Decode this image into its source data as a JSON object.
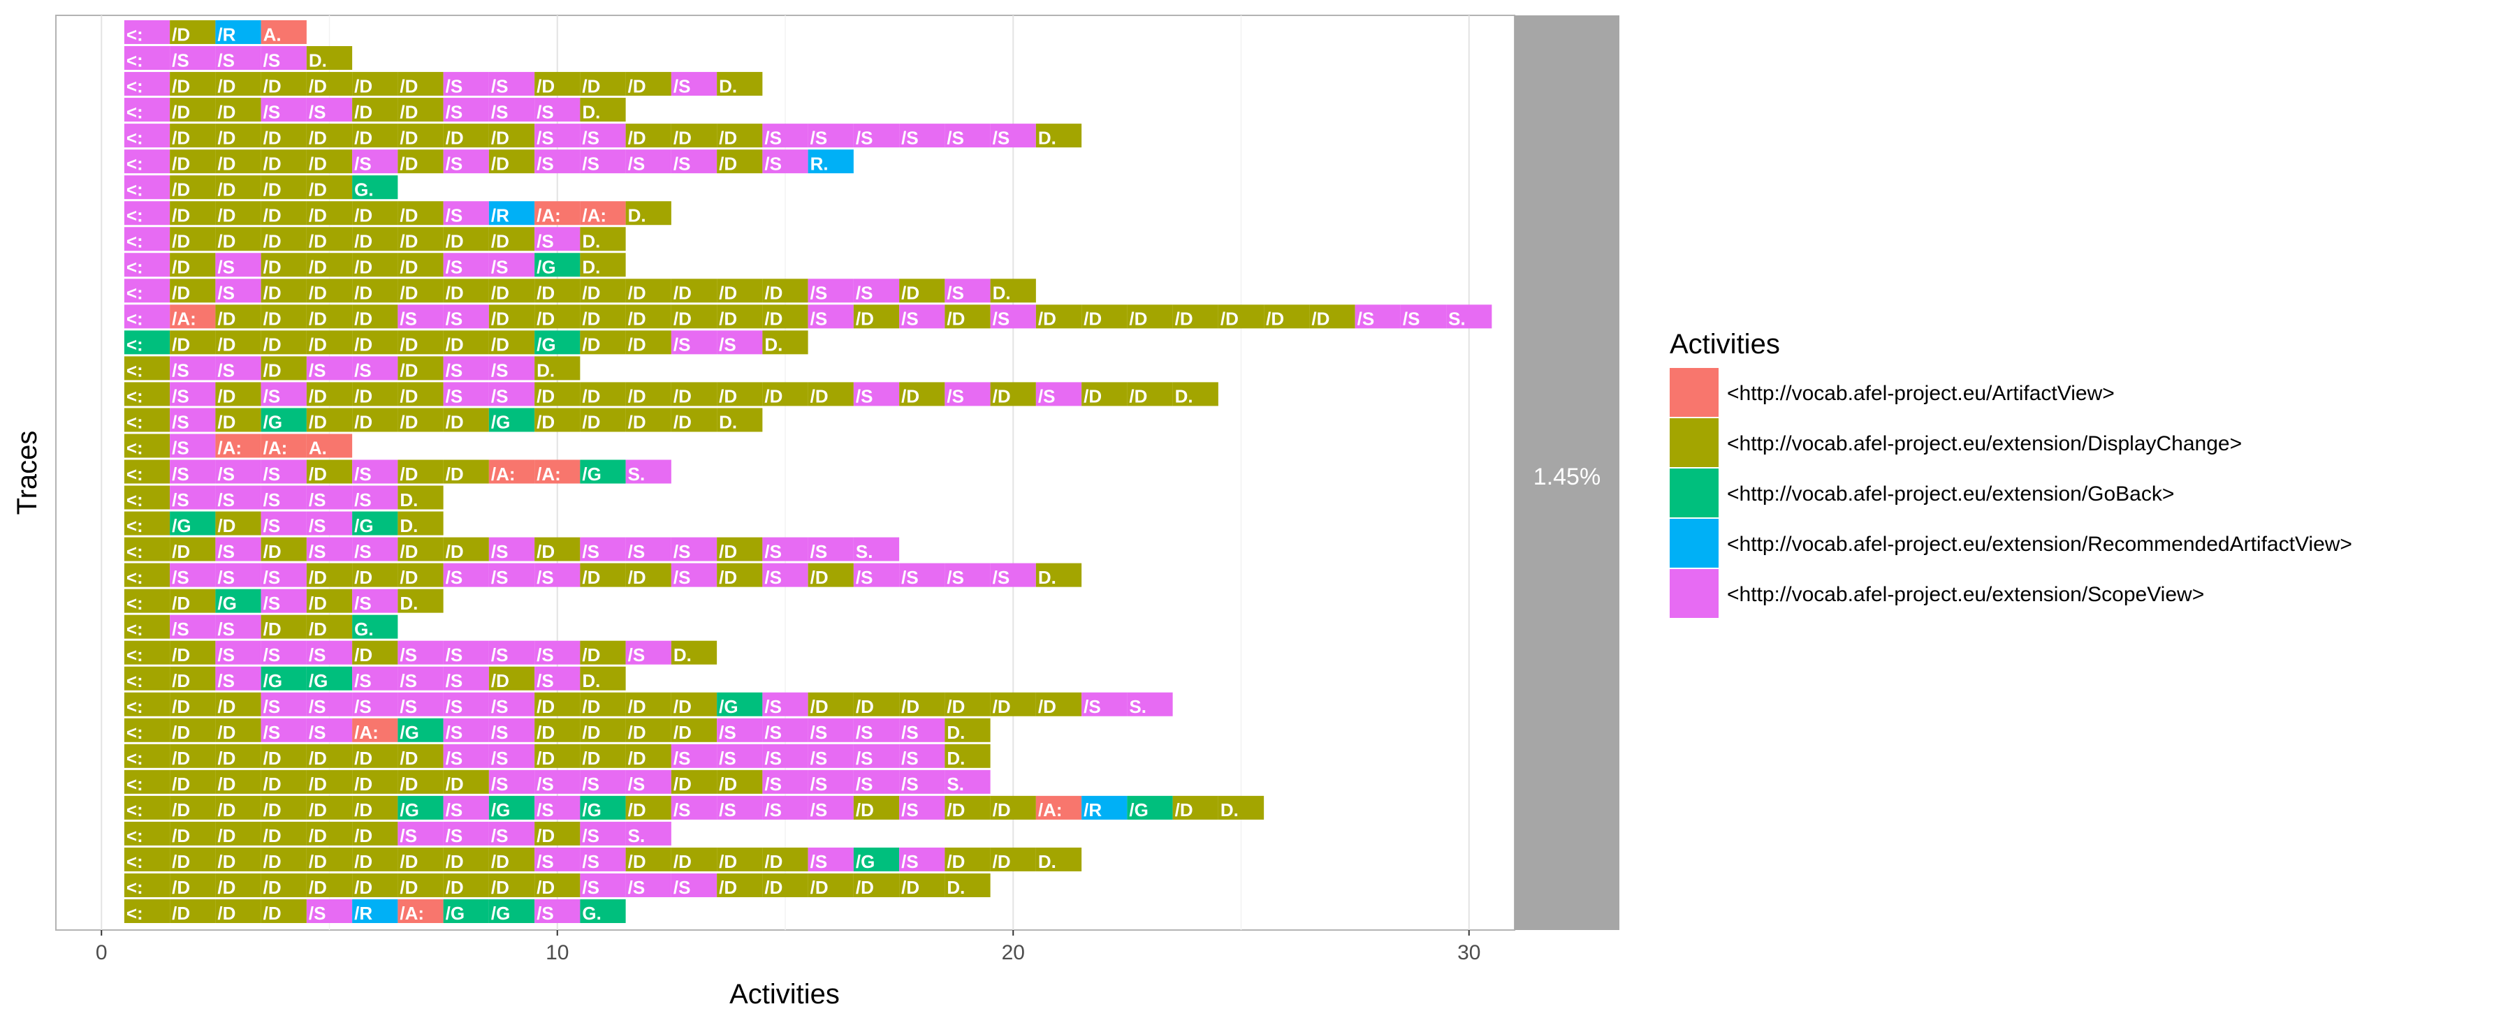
{
  "chart_data": {
    "type": "trace-explorer",
    "xlabel": "Activities",
    "ylabel": "Traces",
    "xlim": [
      -1,
      31
    ],
    "xticks": [
      0,
      10,
      20,
      30
    ],
    "grid": true,
    "coverage_label": "1.45%",
    "legend": {
      "title": "Activities",
      "position": "right",
      "items": [
        {
          "name": "<http://vocab.afel-project.eu/ArtifactView>",
          "color": "#F8766D"
        },
        {
          "name": "<http://vocab.afel-project.eu/extension/DisplayChange>",
          "color": "#A3A500"
        },
        {
          "name": "<http://vocab.afel-project.eu/extension/GoBack>",
          "color": "#00BF7D"
        },
        {
          "name": "<http://vocab.afel-project.eu/extension/RecommendedArtifactView>",
          "color": "#00B0F6"
        },
        {
          "name": "<http://vocab.afel-project.eu/extension/ScopeView>",
          "color": "#E76BF3"
        }
      ]
    },
    "traces": [
      "SDRA",
      "SSSSD",
      "SDDDDDDSSDDDSD",
      "SDDSSDDSSSD",
      "SDDDDDDDDSSDDDSSSSSSD",
      "SDDDDSDSDSSSSDSR",
      "SDDDDG",
      "SDDDDDDSRAAD",
      "SDDDDDDDDSD",
      "SDSDDDDSSGD",
      "SDSDDDDDDDDDDDDSSDSD",
      "SADDDDSSDDDDDDDSDSDSDDDDDDDSSS",
      "GDDDDDDDDGDDSSD",
      "DSSDSSDSSD",
      "DSDSDDDSSDDDDDDDSDSDSDDD",
      "DSDGDDDDGDDDDD",
      "DSAAA",
      "DSSSDSDDAAGS",
      "DSSSSSD",
      "DGDSSGD",
      "DDSDSSDDSDSSSDSSS",
      "DSSSDDDSSSDDSDSDSSSSD",
      "DDGSDSD",
      "DSSDDG",
      "DDSSSDSSSSDSD",
      "DDSGGSSSDSD",
      "DDDSSSSSSDDDDGSDDDDDDSS",
      "DDDSSAGSSDDDDSSSSSD",
      "DDDDDDDSSDDDSSSSSSD",
      "DDDDDDDDSSSSDDSSSSS",
      "DDDDDDGSGSGDSSSSDSDDARGDD",
      "DDDDDDSSSDSS",
      "DDDDDDDDDSSDDDDSGSDDD",
      "DDDDDDDDDDSSSDDDDDD",
      "DDDDSRAGGSG"
    ],
    "cell_text": {
      "first": "<:",
      "last_by_type": {
        "S": "S.",
        "D": "D.",
        "G": "G.",
        "A": "A.",
        "R": "R."
      },
      "mid_by_type": {
        "S": "/S",
        "D": "/D",
        "G": "/G",
        "A": "/A:",
        "R": "/R"
      }
    }
  }
}
